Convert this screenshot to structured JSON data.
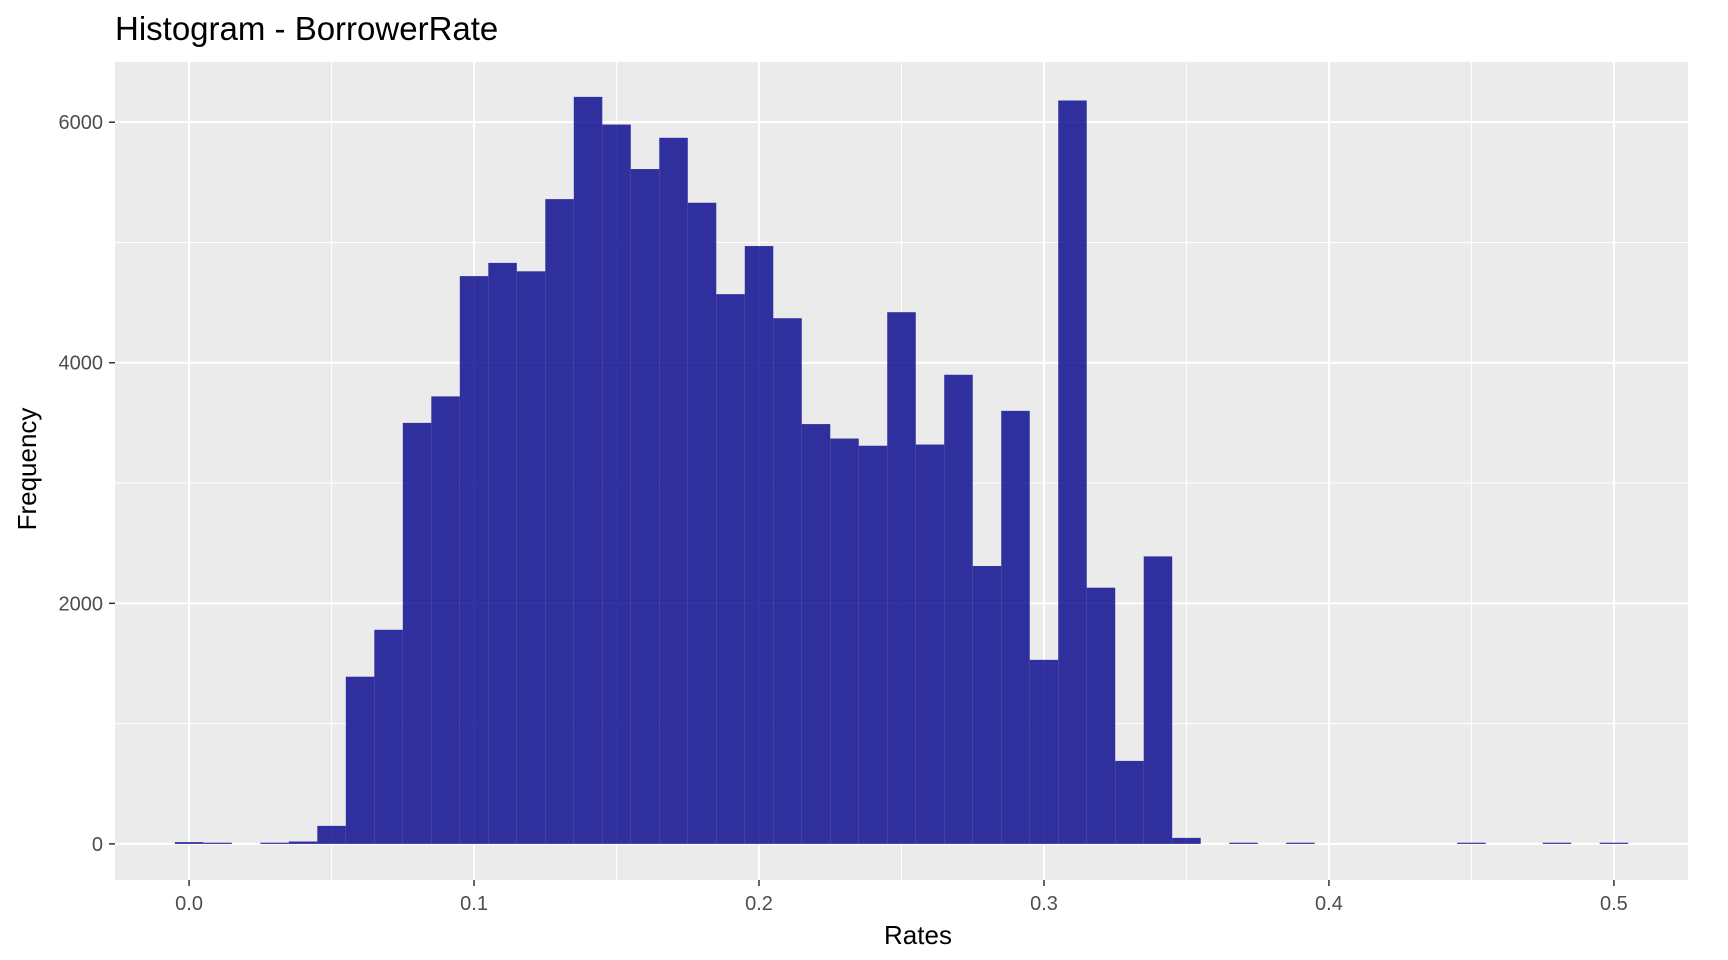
{
  "chart_data": {
    "type": "bar",
    "title": "Histogram - BorrowerRate",
    "xlabel": "Rates",
    "ylabel": "Frequency",
    "xlim": [
      -0.026,
      0.526
    ],
    "ylim": [
      -300,
      6500
    ],
    "x_ticks": [
      0.0,
      0.1,
      0.2,
      0.3,
      0.4,
      0.5
    ],
    "x_tick_labels": [
      "0.0",
      "0.1",
      "0.2",
      "0.3",
      "0.4",
      "0.5"
    ],
    "y_ticks": [
      0,
      2000,
      4000,
      6000
    ],
    "y_tick_labels": [
      "0",
      "2000",
      "4000",
      "6000"
    ],
    "bin_width": 0.01,
    "bin_starts": [
      -0.005,
      0.005,
      0.015,
      0.025,
      0.035,
      0.045,
      0.055,
      0.065,
      0.075,
      0.085,
      0.095,
      0.105,
      0.115,
      0.125,
      0.135,
      0.145,
      0.155,
      0.165,
      0.175,
      0.185,
      0.195,
      0.205,
      0.215,
      0.225,
      0.235,
      0.245,
      0.255,
      0.265,
      0.275,
      0.285,
      0.295,
      0.305,
      0.315,
      0.325,
      0.335,
      0.345,
      0.355,
      0.365,
      0.375,
      0.385,
      0.395,
      0.405,
      0.415,
      0.425,
      0.435,
      0.445,
      0.455,
      0.465,
      0.475,
      0.485,
      0.495
    ],
    "values": [
      15,
      10,
      0,
      10,
      20,
      150,
      1390,
      1780,
      3500,
      3720,
      4720,
      4830,
      4760,
      5360,
      6210,
      5980,
      5610,
      5870,
      5330,
      4570,
      4970,
      4370,
      3490,
      3370,
      3310,
      4420,
      3320,
      3900,
      2310,
      3600,
      1530,
      6180,
      2130,
      690,
      2390,
      50,
      0,
      10,
      0,
      10,
      0,
      0,
      0,
      0,
      0,
      10,
      0,
      0,
      10,
      0,
      10
    ],
    "bar_color": "#00008B",
    "bar_opacity": 0.8,
    "panel_background": "#EBEBEB",
    "grid": true,
    "grid_color": "#FFFFFF",
    "legend": "none"
  }
}
